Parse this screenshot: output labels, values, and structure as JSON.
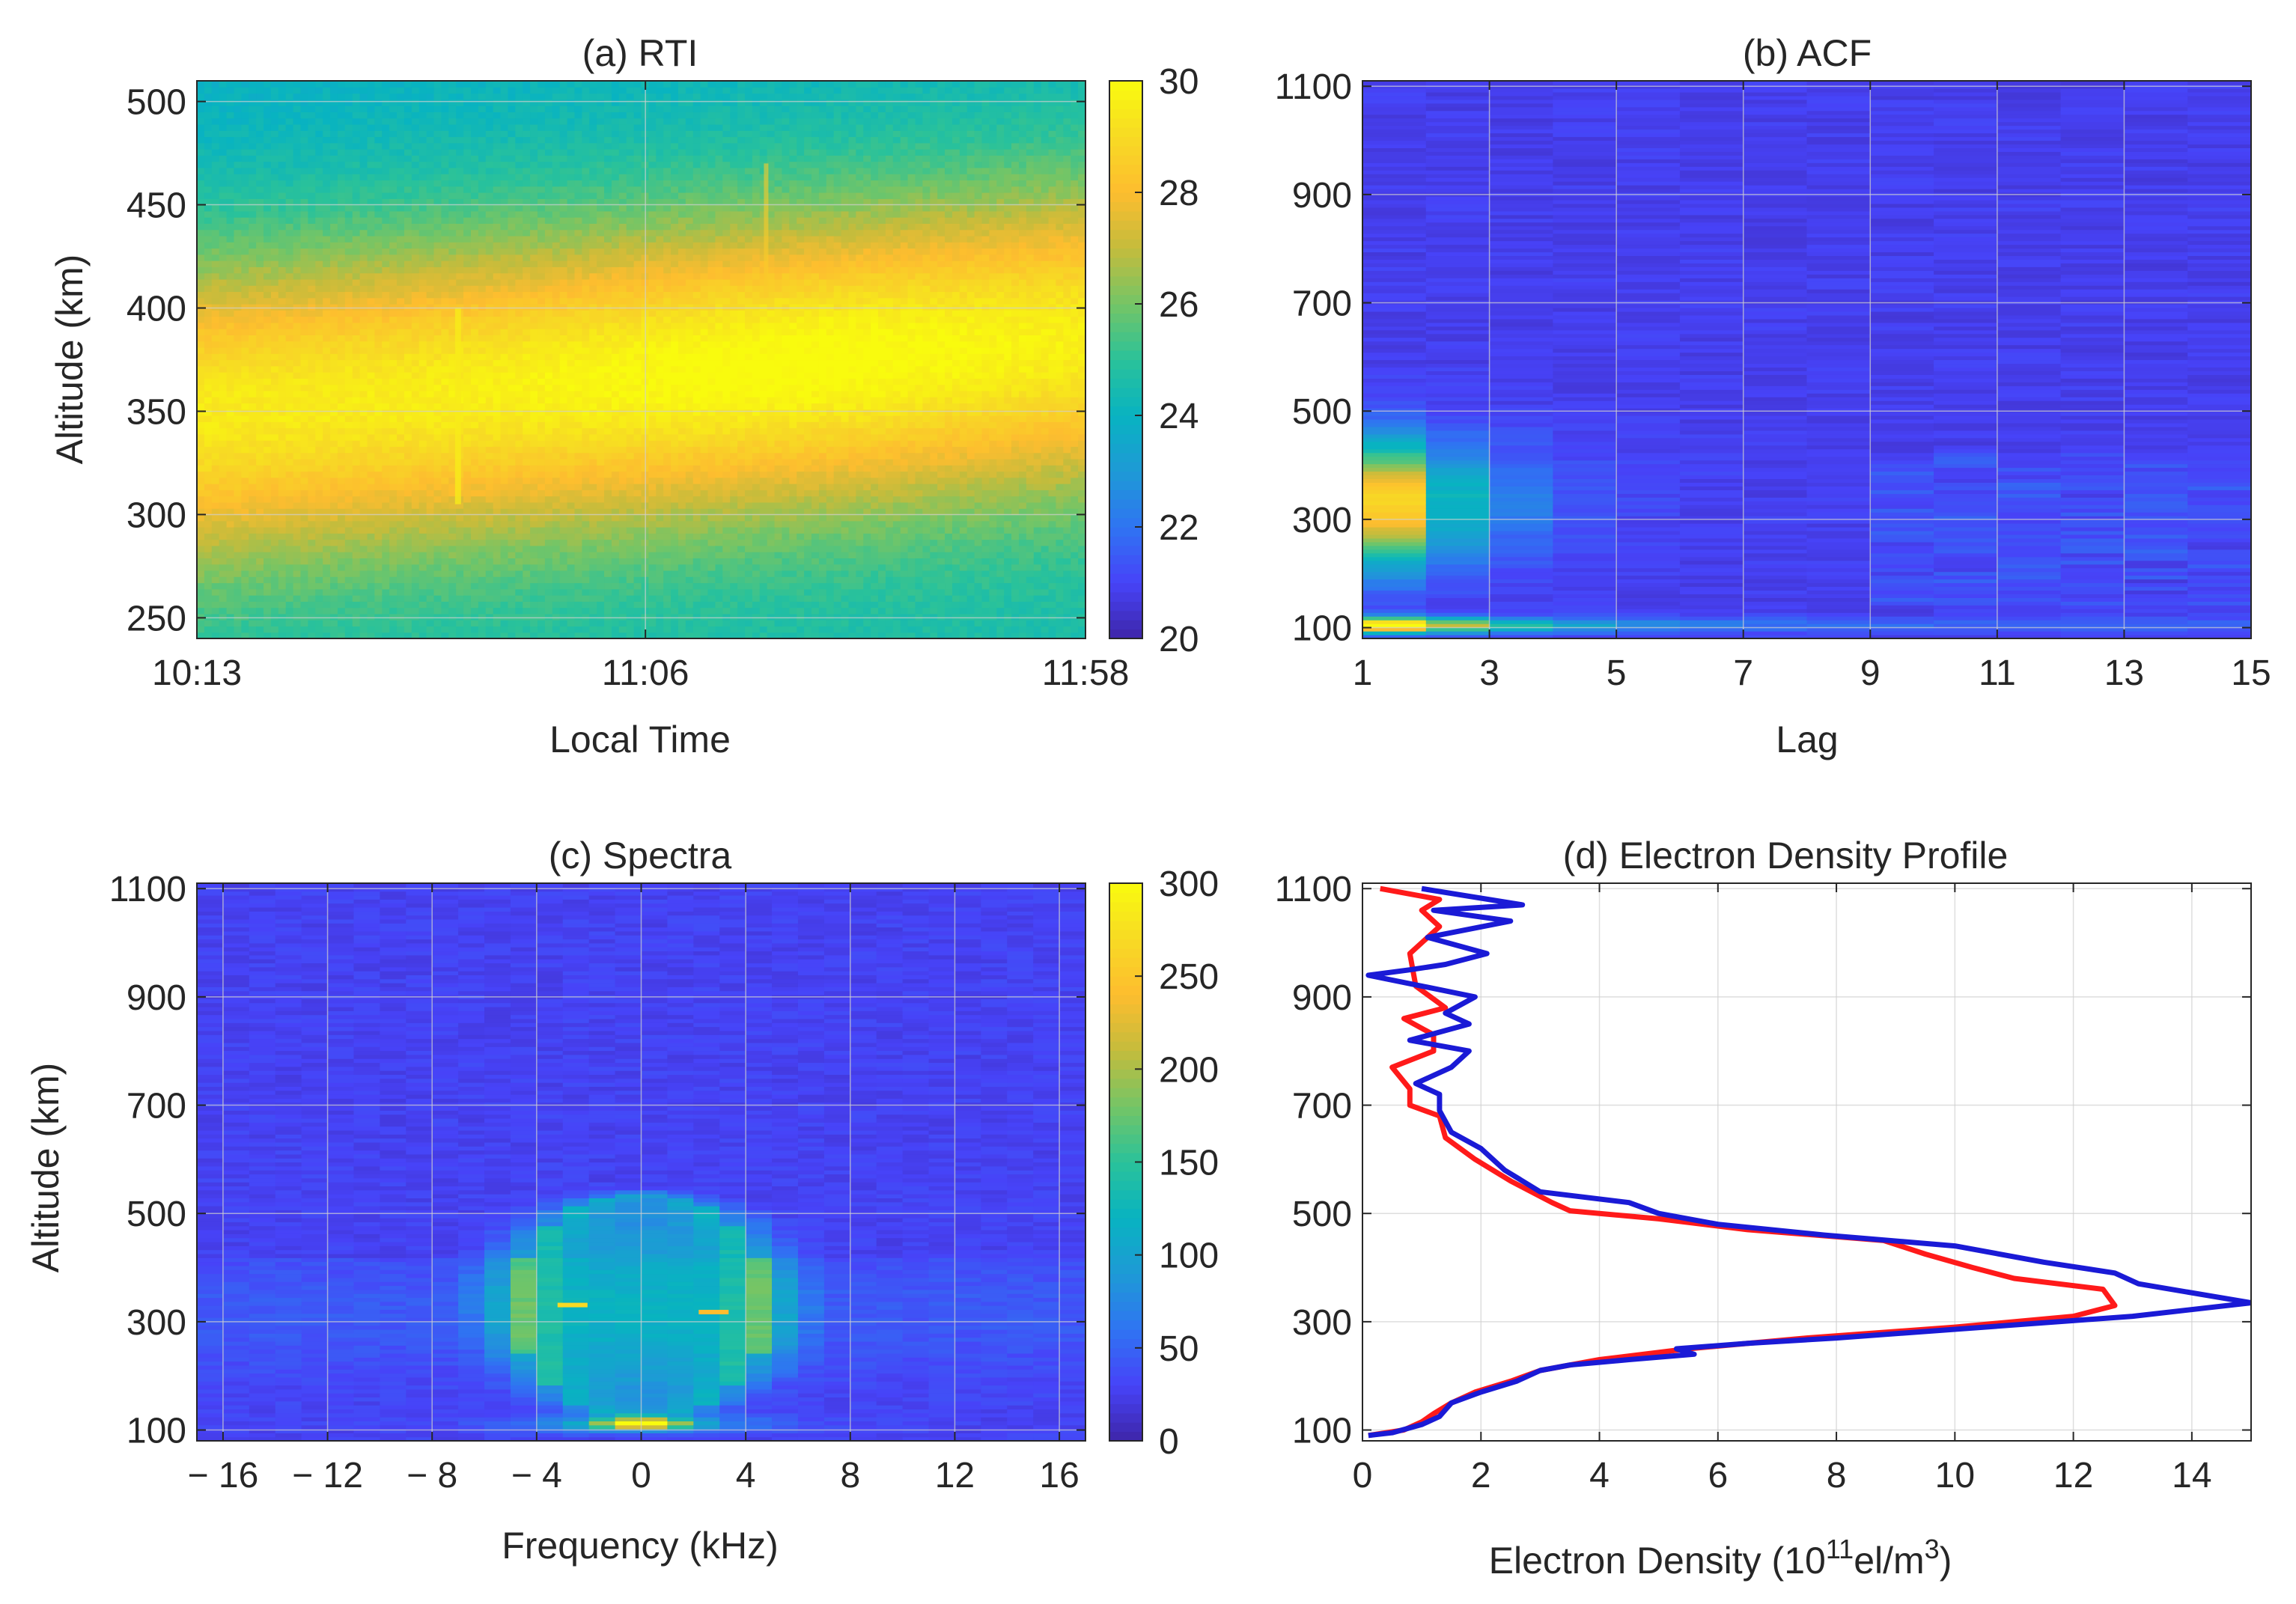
{
  "colors": {
    "parula": [
      "#3e26a8",
      "#4743f8",
      "#2f74f2",
      "#1e9ad6",
      "#08b3c1",
      "#2ac29a",
      "#74c566",
      "#c4bc3c",
      "#fdbd2f",
      "#f7da24",
      "#f9fb0e"
    ],
    "axis": "#262626",
    "grid": "#d0d0d0",
    "red_series": "#ff1a1a",
    "blue_series": "#1a1ad6"
  },
  "chart_data": [
    {
      "id": "rti",
      "type": "heatmap",
      "title": "(a) RTI",
      "xlabel": "Local Time",
      "ylabel": "Altitude (km)",
      "x_tick_labels": [
        "10:13",
        "11:06",
        "11:58"
      ],
      "x_range_minutes": [
        0,
        105
      ],
      "x_tick_values_minutes": [
        0,
        53,
        105
      ],
      "ylim": [
        240,
        510
      ],
      "y_ticks": [
        250,
        300,
        350,
        400,
        450,
        500
      ],
      "colorbar": {
        "range": [
          20,
          30
        ],
        "ticks": [
          20,
          22,
          24,
          26,
          28,
          30
        ]
      },
      "grid": true,
      "structure": {
        "value_range": [
          24.5,
          29.5
        ],
        "peak_layer_center_km": {
          "start": 350,
          "end": 385
        },
        "peak_time_minutes": 70
      }
    },
    {
      "id": "acf",
      "type": "heatmap",
      "title": "(b) ACF",
      "xlabel": "Lag",
      "ylabel": "",
      "xlim": [
        1,
        15
      ],
      "x_ticks": [
        1,
        3,
        5,
        7,
        9,
        11,
        13,
        15
      ],
      "ylim": [
        80,
        1110
      ],
      "y_ticks": [
        100,
        300,
        500,
        700,
        900,
        1100
      ],
      "grid": true,
      "colorbar": null,
      "structure": {
        "strong_lags": [
          1,
          2,
          3
        ],
        "peak_altitude_km": 330,
        "e_region_altitude_km": 105
      }
    },
    {
      "id": "spectra",
      "type": "heatmap",
      "title": "(c) Spectra",
      "xlabel": "Frequency (kHz)",
      "ylabel": "Altitude (km)",
      "xlim": [
        -17,
        17
      ],
      "x_ticks": [
        -16,
        -12,
        -8,
        -4,
        0,
        4,
        8,
        12,
        16
      ],
      "x_tick_labels": [
        "− 16",
        "− 12",
        "− 8",
        "− 4",
        "0",
        "4",
        "8",
        "12",
        "16"
      ],
      "ylim": [
        80,
        1110
      ],
      "y_ticks": [
        100,
        300,
        500,
        700,
        900,
        1100
      ],
      "colorbar": {
        "range": [
          0,
          300
        ],
        "ticks": [
          0,
          50,
          100,
          150,
          200,
          250,
          300
        ]
      },
      "grid": true,
      "structure": {
        "ion_line_half_width_khz": 5,
        "peak_altitude_km": 330,
        "e_region_peak_khz": 0
      }
    },
    {
      "id": "density",
      "type": "line",
      "title": "(d) Electron Density Profile",
      "xlabel": "Electron Density (10",
      "xlabel_sup1": "11",
      "xlabel_mid": "el/m",
      "xlabel_sup2": "3",
      "xlabel_end": ")",
      "ylabel": "",
      "xlim": [
        0,
        15
      ],
      "x_ticks": [
        0,
        2,
        4,
        6,
        8,
        10,
        12,
        14
      ],
      "ylim": [
        80,
        1110
      ],
      "y_ticks": [
        100,
        300,
        500,
        700,
        900,
        1100
      ],
      "grid": true,
      "series": [
        {
          "name": "red",
          "color": "#ff1a1a",
          "points": [
            [
              0.1,
              90
            ],
            [
              0.7,
              100
            ],
            [
              1.0,
              115
            ],
            [
              1.2,
              130
            ],
            [
              1.5,
              150
            ],
            [
              1.9,
              170
            ],
            [
              2.5,
              190
            ],
            [
              3.0,
              210
            ],
            [
              4.0,
              230
            ],
            [
              5.5,
              250
            ],
            [
              7.5,
              270
            ],
            [
              10.0,
              290
            ],
            [
              12.0,
              310
            ],
            [
              12.7,
              330
            ],
            [
              12.5,
              360
            ],
            [
              11.0,
              380
            ],
            [
              10.3,
              400
            ],
            [
              9.5,
              425
            ],
            [
              8.8,
              450
            ],
            [
              6.5,
              470
            ],
            [
              5.0,
              490
            ],
            [
              3.5,
              505
            ],
            [
              3.2,
              520
            ],
            [
              2.5,
              560
            ],
            [
              1.9,
              600
            ],
            [
              1.4,
              640
            ],
            [
              1.3,
              680
            ],
            [
              0.8,
              700
            ],
            [
              0.8,
              730
            ],
            [
              0.5,
              770
            ],
            [
              1.2,
              800
            ],
            [
              1.2,
              830
            ],
            [
              0.7,
              860
            ],
            [
              1.4,
              880
            ],
            [
              0.9,
              920
            ],
            [
              0.8,
              980
            ],
            [
              1.3,
              1030
            ],
            [
              1.0,
              1060
            ],
            [
              1.3,
              1080
            ],
            [
              0.3,
              1100
            ]
          ]
        },
        {
          "name": "blue",
          "color": "#1a1ad6",
          "points": [
            [
              0.1,
              90
            ],
            [
              0.5,
              95
            ],
            [
              1.0,
              110
            ],
            [
              1.3,
              125
            ],
            [
              1.5,
              150
            ],
            [
              2.0,
              170
            ],
            [
              2.6,
              190
            ],
            [
              3.0,
              210
            ],
            [
              3.5,
              220
            ],
            [
              4.5,
              230
            ],
            [
              5.6,
              240
            ],
            [
              5.3,
              250
            ],
            [
              6.5,
              260
            ],
            [
              8.0,
              270
            ],
            [
              10.5,
              290
            ],
            [
              13.0,
              310
            ],
            [
              15.0,
              335
            ],
            [
              13.1,
              370
            ],
            [
              12.7,
              390
            ],
            [
              11.5,
              410
            ],
            [
              10.0,
              440
            ],
            [
              7.8,
              460
            ],
            [
              6.0,
              480
            ],
            [
              5.0,
              500
            ],
            [
              4.5,
              520
            ],
            [
              3.0,
              540
            ],
            [
              2.4,
              580
            ],
            [
              2.0,
              620
            ],
            [
              1.5,
              650
            ],
            [
              1.3,
              690
            ],
            [
              1.3,
              720
            ],
            [
              0.9,
              740
            ],
            [
              1.5,
              770
            ],
            [
              1.8,
              800
            ],
            [
              0.8,
              820
            ],
            [
              1.8,
              850
            ],
            [
              1.4,
              870
            ],
            [
              1.9,
              900
            ],
            [
              1.0,
              920
            ],
            [
              0.1,
              940
            ],
            [
              0.8,
              950
            ],
            [
              1.4,
              960
            ],
            [
              2.1,
              980
            ],
            [
              1.1,
              1010
            ],
            [
              2.5,
              1040
            ],
            [
              1.2,
              1060
            ],
            [
              2.7,
              1070
            ],
            [
              1.0,
              1100
            ]
          ]
        }
      ]
    }
  ]
}
